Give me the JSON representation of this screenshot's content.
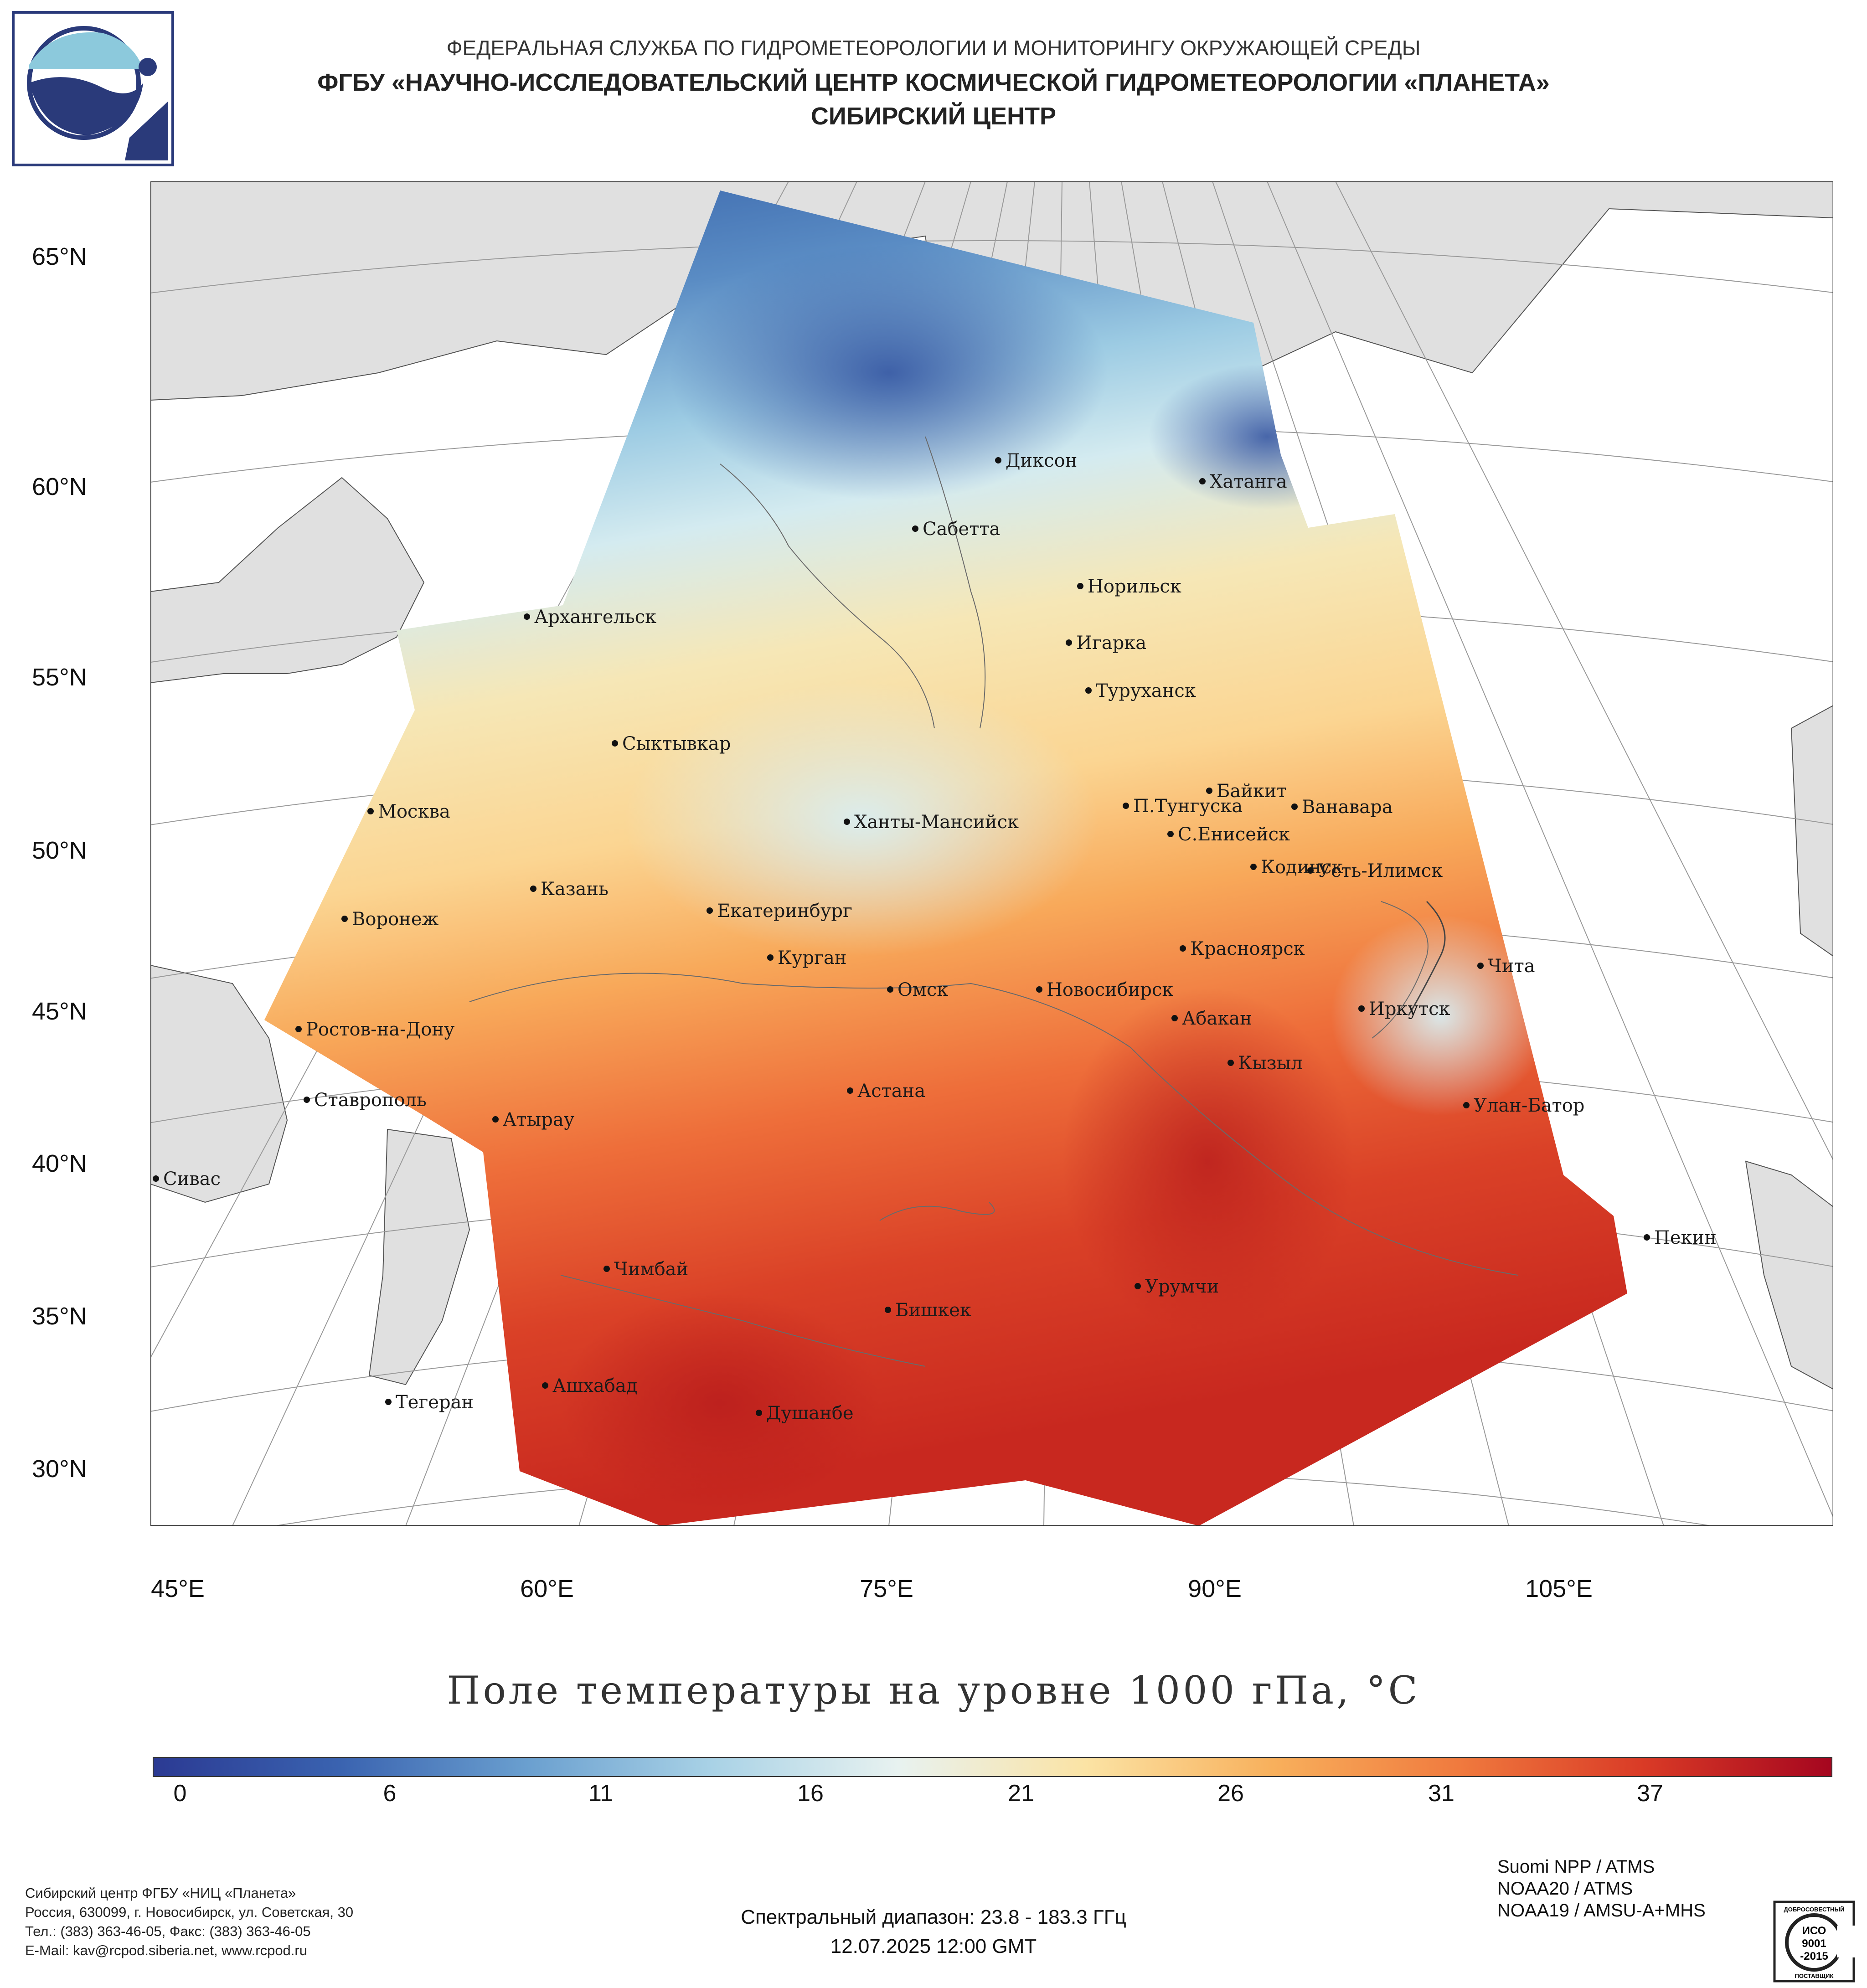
{
  "header": {
    "line1": "ФЕДЕРАЛЬНАЯ СЛУЖБА ПО ГИДРОМЕТЕОРОЛОГИИ И МОНИТОРИНГУ ОКРУЖАЮЩЕЙ СРЕДЫ",
    "line2": "ФГБУ «НАУЧНО-ИССЛЕДОВАТЕЛЬСКИЙ ЦЕНТР КОСМИЧЕСКОЙ ГИДРОМЕТЕОРОЛОГИИ «ПЛАНЕТА»",
    "line3": "СИБИРСКИЙ ЦЕНТР"
  },
  "map": {
    "title": "Поле температуры на уровне 1000 гПа, °С",
    "lat_labels": [
      "65°N",
      "60°N",
      "55°N",
      "50°N",
      "45°N",
      "40°N",
      "35°N",
      "30°N"
    ],
    "lon_labels": [
      "45°E",
      "60°E",
      "75°E",
      "90°E",
      "105°E"
    ],
    "cities": [
      {
        "name": "Диксон"
      },
      {
        "name": "Хатанга"
      },
      {
        "name": "Сабетта"
      },
      {
        "name": "Норильск"
      },
      {
        "name": "Архангельск"
      },
      {
        "name": "Игарка"
      },
      {
        "name": "Туруханск"
      },
      {
        "name": "Сыктывкар"
      },
      {
        "name": "Байкит"
      },
      {
        "name": "П.Тунгуска"
      },
      {
        "name": "Ванавара"
      },
      {
        "name": "Москва"
      },
      {
        "name": "Ханты-Мансийск"
      },
      {
        "name": "С.Енисейск"
      },
      {
        "name": "Кодинск"
      },
      {
        "name": "Усть-Илимск"
      },
      {
        "name": "Казань"
      },
      {
        "name": "Воронеж"
      },
      {
        "name": "Екатеринбург"
      },
      {
        "name": "Красноярск"
      },
      {
        "name": "Курган"
      },
      {
        "name": "Чита"
      },
      {
        "name": "Омск"
      },
      {
        "name": "Новосибирск"
      },
      {
        "name": "Иркутск"
      },
      {
        "name": "Абакан"
      },
      {
        "name": "Ростов-на-Дону"
      },
      {
        "name": "Кызыл"
      },
      {
        "name": "Ставрополь"
      },
      {
        "name": "Астана"
      },
      {
        "name": "Улан-Батор"
      },
      {
        "name": "Атырау"
      },
      {
        "name": "Сивас"
      },
      {
        "name": "Пекин"
      },
      {
        "name": "Чимбай"
      },
      {
        "name": "Урумчи"
      },
      {
        "name": "Бишкек"
      },
      {
        "name": "Ашхабад"
      },
      {
        "name": "Тегеран"
      },
      {
        "name": "Душанбе"
      }
    ]
  },
  "colorbar": {
    "ticks": [
      "0",
      "6",
      "11",
      "16",
      "21",
      "26",
      "31",
      "37"
    ],
    "min": 0,
    "max": 40,
    "colors": [
      "#2b3a93",
      "#3a63b0",
      "#6a9fcf",
      "#a9d2e6",
      "#e8f2f0",
      "#fbe3a4",
      "#f8b05c",
      "#f07a3e",
      "#d93a26",
      "#a5061f"
    ]
  },
  "footer": {
    "org_lines": [
      "Сибирский центр ФГБУ «НИЦ «Планета»",
      "Россия, 630099, г. Новосибирск, ул. Советская, 30",
      "Тел.: (383) 363-46-05, Факс: (383) 363-46-05",
      "E-Mail: kav@rcpod.siberia.net, www.rcpod.ru"
    ],
    "spectral": "Спектральный диапазон: 23.8 - 183.3 ГГц",
    "datetime": "12.07.2025 12:00 GMT",
    "instruments": [
      "Suomi NPP / ATMS",
      "NOAA20 / ATMS",
      "NOAA19 / AMSU-A+MHS"
    ],
    "iso": {
      "top": "ДОБРОСОВЕСТНЫЙ",
      "l1": "ИСО",
      "l2": "9001",
      "l3": "-2015",
      "bottom": "ПОСТАВЩИК"
    }
  }
}
